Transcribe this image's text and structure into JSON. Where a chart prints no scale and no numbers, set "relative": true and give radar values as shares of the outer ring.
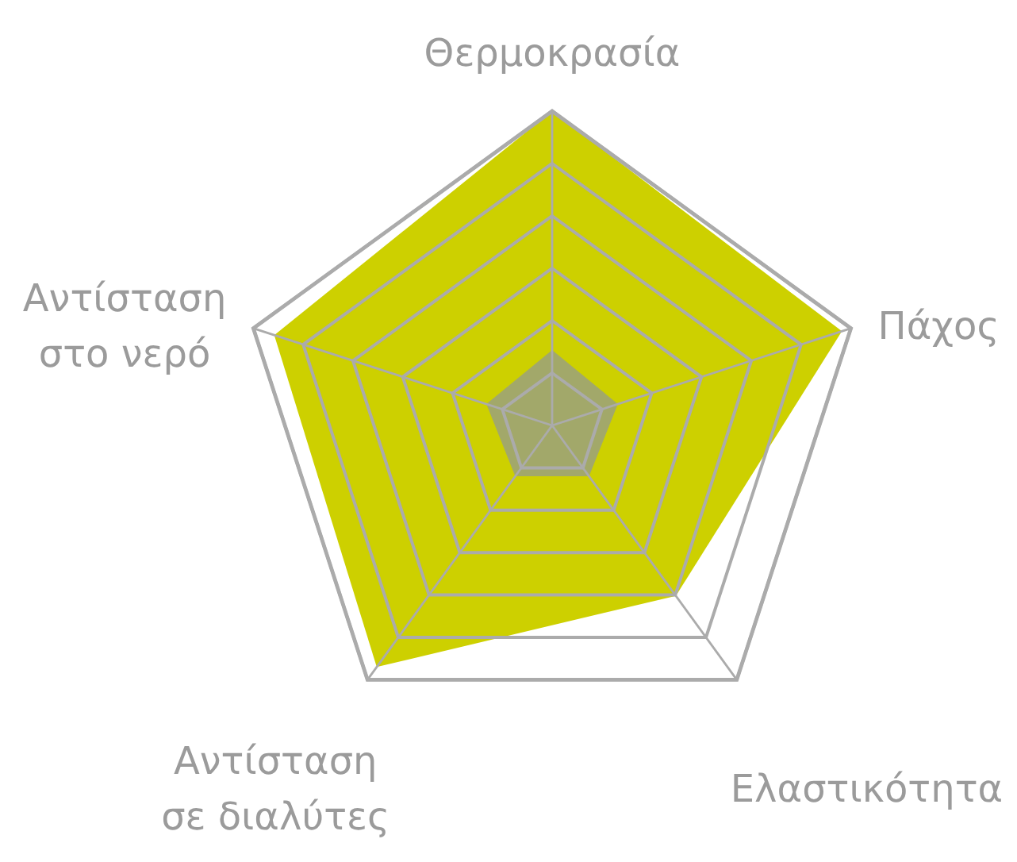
{
  "chart_data": {
    "type": "radar",
    "relative": true,
    "grid": true,
    "categories": [
      "Θερμοκρασία",
      "Πάχος",
      "Ελαστικότητα",
      "Αντίσταση\nσε διαλύτες",
      "Αντίσταση\nστο νερό"
    ],
    "series": [
      {
        "color": "#cdd000",
        "values": [
          1,
          0.97,
          0.67,
          0.95,
          0.93
        ]
      },
      {
        "color": "#a2a86a",
        "values": [
          0.24,
          0.22,
          0.2,
          0.2,
          0.22
        ]
      }
    ]
  }
}
